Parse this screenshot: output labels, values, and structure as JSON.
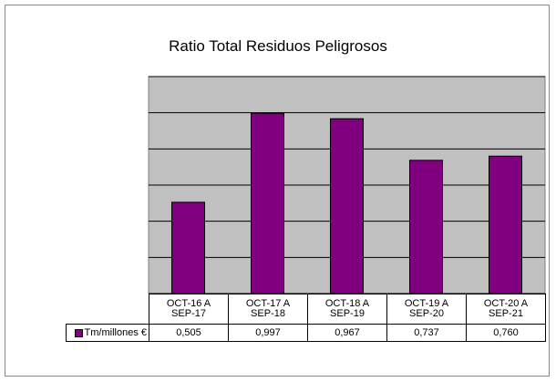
{
  "chart_data": {
    "type": "bar",
    "title": "Ratio Total Residuos Peligrosos",
    "categories": [
      "OCT-16 A\nSEP-17",
      "OCT-17 A\nSEP-18",
      "OCT-18 A\nSEP-19",
      "OCT-19 A\nSEP-20",
      "OCT-20 A\nSEP-21"
    ],
    "series": [
      {
        "name": "Tm/millones €",
        "color": "#800080",
        "values": [
          0.505,
          0.997,
          0.967,
          0.737,
          0.76
        ],
        "value_labels": [
          "0,505",
          "0,997",
          "0,967",
          "0,737",
          "0,760"
        ]
      }
    ],
    "ylim": [
      0,
      1.2
    ],
    "yticks": [
      0,
      0.2,
      0.4,
      0.6,
      0.8,
      1.0,
      1.2
    ],
    "grid": true
  }
}
